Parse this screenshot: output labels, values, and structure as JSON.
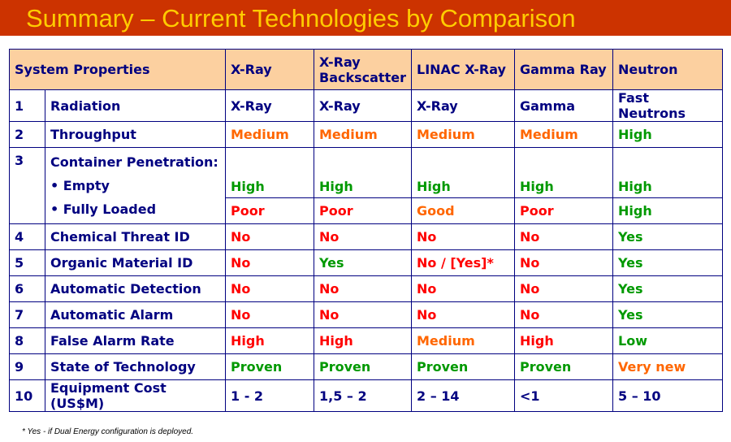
{
  "title": "Summary – Current Technologies by Comparison",
  "header": {
    "system_properties": "System Properties",
    "columns": [
      "X-Ray",
      "X-Ray Backscatter",
      "LINAC X-Ray",
      "Gamma Ray",
      "Neutron"
    ]
  },
  "colors": {
    "title_bar": "#cc3300",
    "title_text": "#ffcc00",
    "header_fill": "#fcd0a0",
    "navy": "#000080",
    "green": "#009900",
    "red": "#ff0000",
    "orange": "#ff6600"
  },
  "rows": [
    {
      "num": "1",
      "property": "Radiation",
      "values": [
        "X-Ray",
        "X-Ray",
        "X-Ray",
        "Gamma",
        "Fast Neutrons"
      ],
      "colors": [
        "blue",
        "blue",
        "blue",
        "blue",
        "blue"
      ]
    },
    {
      "num": "2",
      "property": "Throughput",
      "values": [
        "Medium",
        "Medium",
        "Medium",
        "Medium",
        "High"
      ],
      "colors": [
        "orange",
        "orange",
        "orange",
        "orange",
        "green"
      ]
    },
    {
      "num": "3",
      "property": "Container Penetration:",
      "sub_empty": "• Empty",
      "sub_loaded": "• Fully Loaded",
      "empty_values": [
        "High",
        "High",
        "High",
        "High",
        "High"
      ],
      "empty_colors": [
        "green",
        "green",
        "green",
        "green",
        "green"
      ],
      "loaded_values": [
        "Poor",
        "Poor",
        "Good",
        "Poor",
        "High"
      ],
      "loaded_colors": [
        "red",
        "red",
        "orange",
        "red",
        "green"
      ]
    },
    {
      "num": "4",
      "property": "Chemical Threat ID",
      "values": [
        "No",
        "No",
        "No",
        "No",
        "Yes"
      ],
      "colors": [
        "red",
        "red",
        "red",
        "red",
        "green"
      ]
    },
    {
      "num": "5",
      "property": "Organic Material ID",
      "values": [
        "No",
        "Yes",
        "No / [Yes]*",
        "No",
        "Yes"
      ],
      "colors": [
        "red",
        "green",
        "red",
        "red",
        "green"
      ]
    },
    {
      "num": "6",
      "property": "Automatic Detection",
      "values": [
        "No",
        "No",
        "No",
        "No",
        "Yes"
      ],
      "colors": [
        "red",
        "red",
        "red",
        "red",
        "green"
      ]
    },
    {
      "num": "7",
      "property": "Automatic Alarm",
      "values": [
        "No",
        "No",
        "No",
        "No",
        "Yes"
      ],
      "colors": [
        "red",
        "red",
        "red",
        "red",
        "green"
      ]
    },
    {
      "num": "8",
      "property": "False Alarm Rate",
      "values": [
        "High",
        "High",
        "Medium",
        "High",
        "Low"
      ],
      "colors": [
        "red",
        "red",
        "orange",
        "red",
        "green"
      ]
    },
    {
      "num": "9",
      "property": "State of Technology",
      "values": [
        "Proven",
        "Proven",
        "Proven",
        "Proven",
        "Very new"
      ],
      "colors": [
        "green",
        "green",
        "green",
        "green",
        "orange"
      ]
    },
    {
      "num": "10",
      "property": "Equipment Cost (US$M)",
      "values": [
        "1 - 2",
        "1,5 – 2",
        "2 – 14",
        "<1",
        "5 – 10"
      ],
      "colors": [
        "blue",
        "blue",
        "blue",
        "blue",
        "blue"
      ]
    }
  ],
  "footnote": "* Yes - if Dual Energy configuration is deployed."
}
